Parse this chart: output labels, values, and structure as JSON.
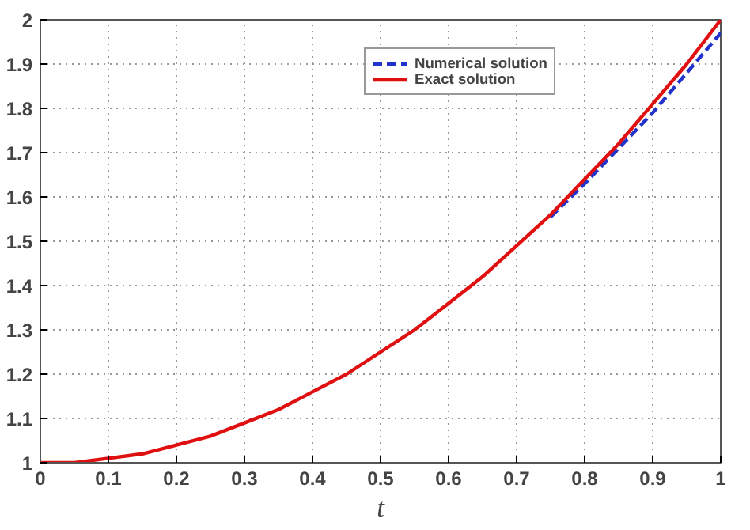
{
  "chart_data": {
    "type": "line",
    "xlabel": "t",
    "x": [
      0,
      0.05,
      0.1,
      0.15,
      0.2,
      0.25,
      0.3,
      0.35,
      0.4,
      0.45,
      0.5,
      0.55,
      0.6,
      0.65,
      0.7,
      0.75,
      0.8,
      0.85,
      0.9,
      0.95,
      1
    ],
    "series": [
      {
        "name": "Numerical solution",
        "color": "#2233cc",
        "line_style": "dashed",
        "values": [
          null,
          null,
          null,
          null,
          null,
          null,
          null,
          null,
          null,
          null,
          null,
          null,
          null,
          null,
          null,
          1.555,
          1.63,
          1.71,
          1.79,
          1.88,
          1.97
        ]
      },
      {
        "name": "Exact solution",
        "color": "#e01010",
        "line_style": "solid",
        "values": [
          1,
          1,
          1.01,
          1.02,
          1.04,
          1.06,
          1.09,
          1.12,
          1.16,
          1.2,
          1.25,
          1.3,
          1.36,
          1.42,
          1.49,
          1.56,
          1.64,
          1.72,
          1.81,
          1.9,
          2
        ]
      }
    ],
    "xlim": [
      0,
      1
    ],
    "ylim": [
      1,
      2
    ],
    "xticks": [
      0,
      0.1,
      0.2,
      0.3,
      0.4,
      0.5,
      0.6,
      0.7,
      0.8,
      0.9,
      1
    ],
    "yticks": [
      1,
      1.1,
      1.2,
      1.3,
      1.4,
      1.5,
      1.6,
      1.7,
      1.8,
      1.9,
      2
    ],
    "grid": true,
    "legend": "top right",
    "marker": "none"
  }
}
